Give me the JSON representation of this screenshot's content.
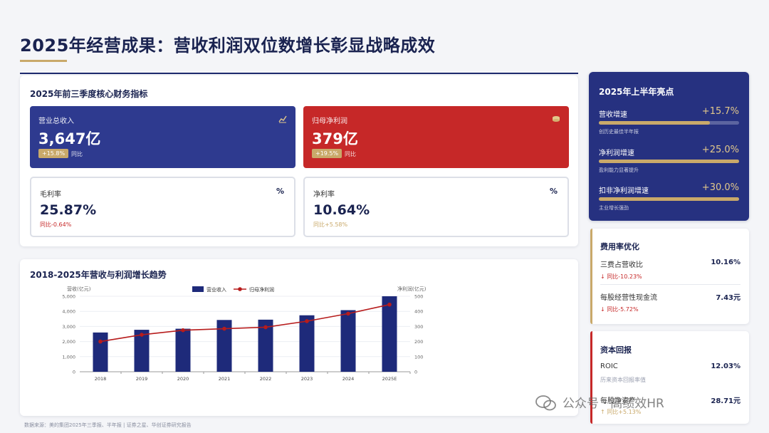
{
  "page": {
    "title": "2025年经营成果：营收利润双位数增长彰显战略成效"
  },
  "core": {
    "title": "2025年前三季度核心财务指标",
    "revenue": {
      "label": "营业总收入",
      "value": "3,647亿",
      "badge": "+15.8%",
      "yoy": "同比",
      "icon": "line-chart-icon",
      "color": "#2e3a8f"
    },
    "profit": {
      "label": "归母净利润",
      "value": "379亿",
      "badge": "+19.5%",
      "yoy": "同比",
      "icon": "coins-icon",
      "color": "#c62828"
    },
    "gross_margin": {
      "label": "毛利率",
      "value": "25.87%",
      "sub": "同比-0.64%",
      "icon": "percent-icon"
    },
    "net_margin": {
      "label": "净利率",
      "value": "10.64%",
      "sub": "同比+5.58%",
      "icon": "percent-icon"
    }
  },
  "highlights": {
    "title": "2025年上半年亮点",
    "items": [
      {
        "label": "营收增速",
        "value": "+15.7%",
        "note": "创历史最佳半年报",
        "fill": 0.79
      },
      {
        "label": "净利润增速",
        "value": "+25.0%",
        "note": "盈利能力显著提升",
        "fill": 1.0
      },
      {
        "label": "扣非净利润增速",
        "value": "+30.0%",
        "note": "主业增长强劲",
        "fill": 1.0
      }
    ]
  },
  "cost": {
    "title": "费用率优化",
    "items": [
      {
        "label": "三费占营收比",
        "value": "10.16%",
        "note": "↓ 同比-10.23%"
      },
      {
        "label": "每股经营性现金流",
        "value": "7.43元",
        "note": "↓ 同比-5.72%"
      }
    ]
  },
  "capital": {
    "title": "资本回报",
    "items": [
      {
        "label": "ROIC",
        "value": "12.03%",
        "note": "历来资本回报率值"
      },
      {
        "label": "每股净资产",
        "value": "28.71元",
        "note": "↑ 同比+5.13%"
      }
    ]
  },
  "chart_data": {
    "type": "bar",
    "title": "2018-2025年营收与利润增长趋势",
    "ylabel": "营收(亿元)",
    "y2label": "净利润(亿元)",
    "categories": [
      "2018",
      "2019",
      "2020",
      "2021",
      "2022",
      "2023",
      "2024",
      "2025E"
    ],
    "ylim": [
      0,
      5000
    ],
    "y2lim": [
      0,
      500
    ],
    "yticks": [
      "0",
      "1,000",
      "2,000",
      "3,000",
      "4,000",
      "5,000"
    ],
    "y2ticks": [
      "0",
      "100",
      "200",
      "300",
      "400",
      "500"
    ],
    "grid": true,
    "legend": "top-center",
    "series": [
      {
        "name": "营业收入",
        "type": "bar",
        "axis": "left",
        "color": "#1e2a7a",
        "values": [
          2600,
          2780,
          2850,
          3430,
          3450,
          3740,
          4080,
          5000
        ]
      },
      {
        "name": "归母净利润",
        "type": "line",
        "axis": "right",
        "color": "#b71c1c",
        "values": [
          200,
          245,
          275,
          285,
          295,
          335,
          385,
          445
        ]
      }
    ]
  },
  "footer": {
    "source": "数据来源：美的集团2025年三季报、半年报 | 证券之星、华创证券研究报告"
  },
  "watermark": {
    "text": "公众号 · 高绩效HR",
    "icon": "wechat-icon"
  }
}
